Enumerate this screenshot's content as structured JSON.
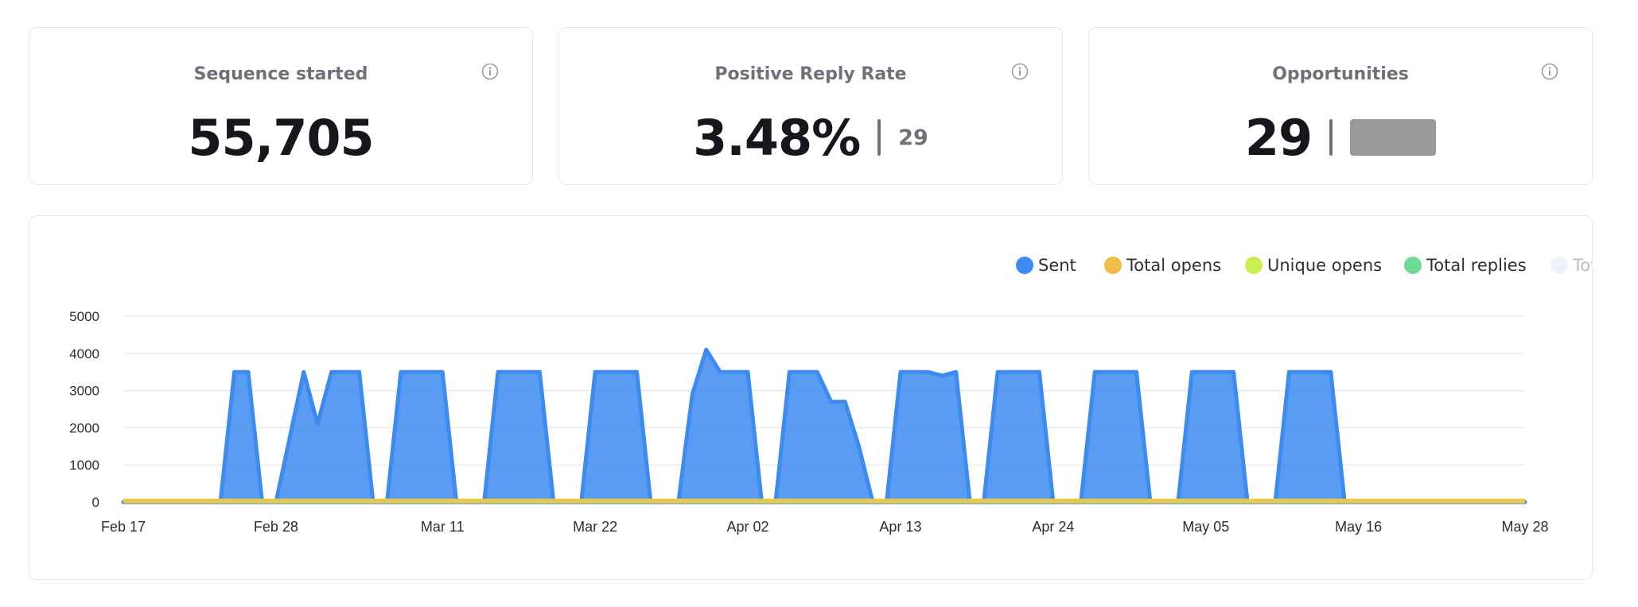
{
  "stats": [
    {
      "title": "Sequence started",
      "value": "55,705",
      "secondary": ""
    },
    {
      "title": "Positive Reply Rate",
      "value": "3.48%",
      "secondary": "29"
    },
    {
      "title": "Opportunities",
      "value": "29",
      "secondary": ""
    }
  ],
  "legend": [
    {
      "label": "Sent",
      "color": "#3d8bf0"
    },
    {
      "label": "Total opens",
      "color": "#f0bd4a"
    },
    {
      "label": "Unique opens",
      "color": "#c9f051"
    },
    {
      "label": "Total replies",
      "color": "#6ed994"
    },
    {
      "label": "Total cl",
      "color": "#eef3fb"
    }
  ],
  "chart_data": {
    "type": "area",
    "y_ticks": [
      "5000",
      "4000",
      "3000",
      "2000",
      "1000",
      "0"
    ],
    "ylim": [
      0,
      5000
    ],
    "x_ticks": [
      "Feb 17",
      "Feb 28",
      "Mar 11",
      "Mar 22",
      "Apr 02",
      "Apr 13",
      "Apr 24",
      "May 05",
      "May 16",
      "May 28"
    ],
    "x_start": "Feb 17",
    "x_end": "May 28",
    "series": [
      {
        "name": "Sent",
        "color": "#3d8bf0",
        "points": [
          [
            "Feb 17",
            0
          ],
          [
            "Feb 24",
            0
          ],
          [
            "Feb 25",
            3500
          ],
          [
            "Feb 26",
            3500
          ],
          [
            "Feb 27",
            0
          ],
          [
            "Feb 28",
            0
          ],
          [
            "Mar 1",
            3500
          ],
          [
            "Mar 2",
            2100
          ],
          [
            "Mar 3",
            3500
          ],
          [
            "Mar 5",
            3500
          ],
          [
            "Mar 6",
            0
          ],
          [
            "Mar 7",
            0
          ],
          [
            "Mar 8",
            3500
          ],
          [
            "Mar 11",
            3500
          ],
          [
            "Mar 12",
            0
          ],
          [
            "Mar 14",
            0
          ],
          [
            "Mar 15",
            3500
          ],
          [
            "Mar 18",
            3500
          ],
          [
            "Mar 19",
            0
          ],
          [
            "Mar 21",
            0
          ],
          [
            "Mar 22",
            3500
          ],
          [
            "Mar 25",
            3500
          ],
          [
            "Mar 26",
            0
          ],
          [
            "Mar 28",
            0
          ],
          [
            "Mar 29",
            2900
          ],
          [
            "Mar 30",
            4100
          ],
          [
            "Mar 31",
            3500
          ],
          [
            "Apr 02",
            3500
          ],
          [
            "Apr 03",
            0
          ],
          [
            "Apr 04",
            0
          ],
          [
            "Apr 05",
            3500
          ],
          [
            "Apr 07",
            3500
          ],
          [
            "Apr 08",
            2700
          ],
          [
            "Apr 09",
            2700
          ],
          [
            "Apr 10",
            1500
          ],
          [
            "Apr 11",
            0
          ],
          [
            "Apr 12",
            0
          ],
          [
            "Apr 13",
            3500
          ],
          [
            "Apr 15",
            3500
          ],
          [
            "Apr 16",
            3400
          ],
          [
            "Apr 17",
            3500
          ],
          [
            "Apr 18",
            0
          ],
          [
            "Apr 19",
            0
          ],
          [
            "Apr 20",
            3500
          ],
          [
            "Apr 23",
            3500
          ],
          [
            "Apr 24",
            0
          ],
          [
            "Apr 26",
            0
          ],
          [
            "Apr 27",
            3500
          ],
          [
            "Apr 30",
            3500
          ],
          [
            "May 01",
            0
          ],
          [
            "May 03",
            0
          ],
          [
            "May 04",
            3500
          ],
          [
            "May 07",
            3500
          ],
          [
            "May 08",
            0
          ],
          [
            "May 10",
            0
          ],
          [
            "May 11",
            3500
          ],
          [
            "May 14",
            3500
          ],
          [
            "May 15",
            0
          ],
          [
            "May 28",
            0
          ]
        ]
      },
      {
        "name": "Total opens",
        "color": "#e6c84d",
        "points": [
          [
            "Feb 17",
            30
          ],
          [
            "May 28",
            30
          ]
        ]
      }
    ]
  }
}
